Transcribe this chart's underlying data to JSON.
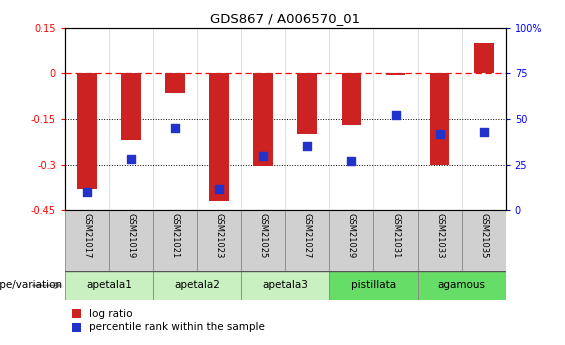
{
  "title": "GDS867 / A006570_01",
  "samples": [
    "GSM21017",
    "GSM21019",
    "GSM21021",
    "GSM21023",
    "GSM21025",
    "GSM21027",
    "GSM21029",
    "GSM21031",
    "GSM21033",
    "GSM21035"
  ],
  "log_ratio": [
    -0.38,
    -0.22,
    -0.065,
    -0.42,
    -0.305,
    -0.2,
    -0.17,
    -0.005,
    -0.3,
    0.1
  ],
  "percentile_rank": [
    10,
    28,
    45,
    12,
    30,
    35,
    27,
    52,
    42,
    43
  ],
  "group_defs": [
    {
      "name": "apetala1",
      "i0": 0,
      "i1": 1,
      "color": "#c8f0c0"
    },
    {
      "name": "apetala2",
      "i0": 2,
      "i1": 3,
      "color": "#c8f0c0"
    },
    {
      "name": "apetala3",
      "i0": 4,
      "i1": 5,
      "color": "#c8f0c0"
    },
    {
      "name": "pistillata",
      "i0": 6,
      "i1": 7,
      "color": "#66dd66"
    },
    {
      "name": "agamous",
      "i0": 8,
      "i1": 9,
      "color": "#66dd66"
    }
  ],
  "ylim_left": [
    -0.45,
    0.15
  ],
  "ylim_right": [
    0,
    100
  ],
  "yticks_left": [
    0.15,
    0,
    -0.15,
    -0.3,
    -0.45
  ],
  "ytick_labels_left": [
    "0.15",
    "0",
    "-0.15",
    "-0.3",
    "-0.45"
  ],
  "yticks_right": [
    100,
    75,
    50,
    25,
    0
  ],
  "ytick_labels_right": [
    "100%",
    "75",
    "50",
    "25",
    "0"
  ],
  "bar_color": "#cc2222",
  "dot_color": "#2233cc",
  "sample_box_color": "#d0d0d0",
  "sample_box_edge_color": "#888888",
  "legend_log_ratio": "log ratio",
  "legend_percentile": "percentile rank within the sample",
  "genotype_label": "genotype/variation"
}
